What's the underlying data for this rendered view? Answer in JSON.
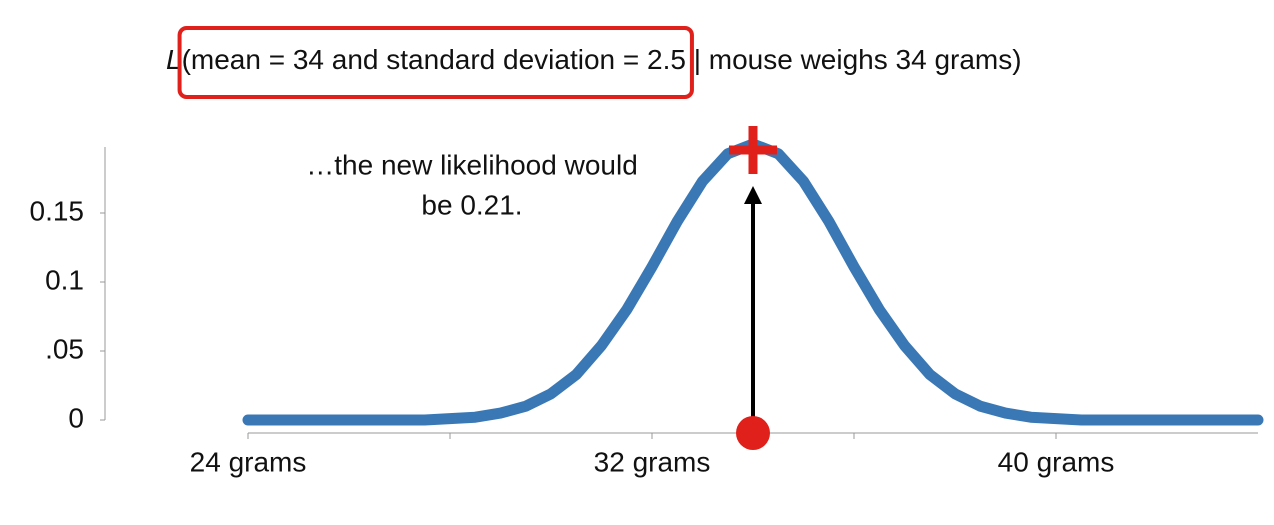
{
  "chart_data": {
    "type": "line",
    "title": {
      "symbol": "L",
      "highlighted": "(mean = 34 and standard deviation = 2.5",
      "rest": " | mouse weighs 34 grams)"
    },
    "annotation": [
      "…the new likelihood would",
      "be 0.21."
    ],
    "x": [
      24,
      24.5,
      25,
      25.5,
      26,
      26.5,
      27,
      27.5,
      28,
      28.5,
      29,
      29.5,
      30,
      30.5,
      31,
      31.5,
      32,
      32.5,
      33,
      33.5,
      34,
      34.5,
      35,
      35.5,
      36,
      36.5,
      37,
      37.5,
      38,
      38.5,
      39,
      39.5,
      40,
      40.5,
      41,
      41.5,
      42,
      42.5,
      43,
      43.5,
      44
    ],
    "values": [
      0,
      0,
      0,
      0,
      0,
      0,
      0,
      0,
      0.001,
      0.002,
      0.005,
      0.01,
      0.019,
      0.033,
      0.054,
      0.08,
      0.111,
      0.144,
      0.173,
      0.193,
      0.2,
      0.193,
      0.173,
      0.144,
      0.111,
      0.08,
      0.054,
      0.033,
      0.019,
      0.01,
      0.005,
      0.002,
      0.001,
      0,
      0,
      0,
      0,
      0,
      0,
      0,
      0
    ],
    "color": "#3a78b5",
    "xlim": [
      24,
      44
    ],
    "xticks": [
      {
        "value": 24,
        "label": "24 grams"
      },
      {
        "value": 32,
        "label": "32 grams"
      },
      {
        "value": 40,
        "label": "40 grams"
      }
    ],
    "xminor_ticks": [
      28,
      36
    ],
    "ylim": [
      0,
      0.2
    ],
    "yticks": [
      0,
      {
        "value": 0.05,
        "label": ".05"
      },
      0.1,
      0.15
    ],
    "marker": {
      "x": 34,
      "likelihood": 0.2,
      "color": "#e0201b"
    },
    "highlight_color": "#e0201b"
  }
}
